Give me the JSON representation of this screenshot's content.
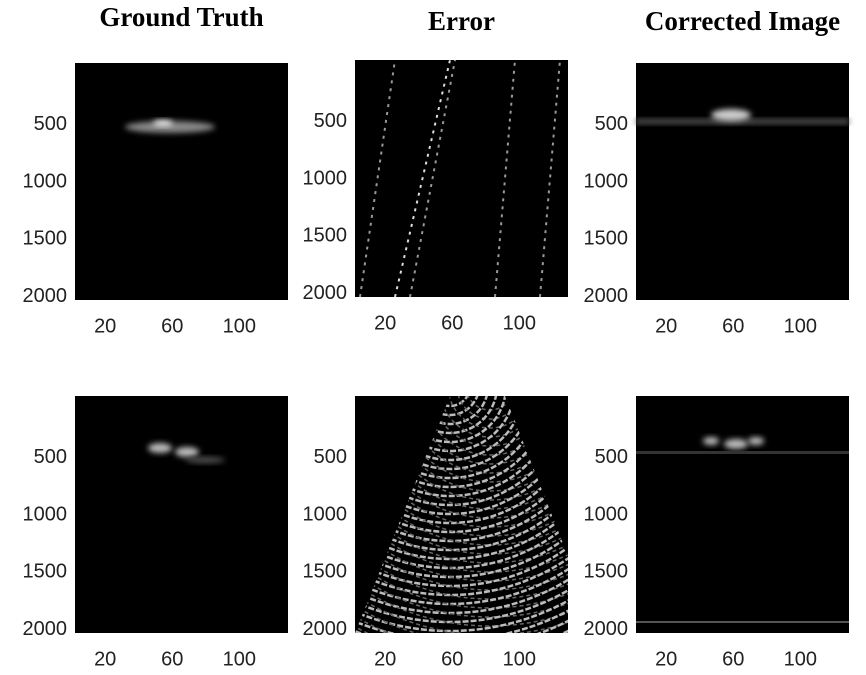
{
  "chart_data": [
    {
      "type": "image",
      "title": "Ground Truth",
      "xlim": [
        2,
        129
      ],
      "ylim": [
        -40,
        2030
      ],
      "xticks": [
        20,
        60,
        100
      ],
      "yticks": [
        500,
        1000,
        1500,
        2000
      ]
    },
    {
      "type": "image",
      "title": "Error",
      "xlim": [
        2,
        129
      ],
      "ylim": [
        -40,
        2030
      ],
      "xticks": [
        20,
        60,
        100
      ],
      "yticks": [
        500,
        1000,
        1500,
        2000
      ]
    },
    {
      "type": "image",
      "title": "Corrected Image",
      "xlim": [
        2,
        129
      ],
      "ylim": [
        -40,
        2030
      ],
      "xticks": [
        20,
        60,
        100
      ],
      "yticks": [
        500,
        1000,
        1500,
        2000
      ]
    },
    {
      "type": "image",
      "xlim": [
        2,
        129
      ],
      "ylim": [
        -40,
        2030
      ],
      "xticks": [
        20,
        60,
        100
      ],
      "yticks": [
        500,
        1000,
        1500,
        2000
      ]
    },
    {
      "type": "image",
      "xlim": [
        2,
        129
      ],
      "ylim": [
        -40,
        2030
      ],
      "xticks": [
        20,
        60,
        100
      ],
      "yticks": [
        500,
        1000,
        1500,
        2000
      ]
    },
    {
      "type": "image",
      "xlim": [
        2,
        129
      ],
      "ylim": [
        -40,
        2030
      ],
      "xticks": [
        20,
        60,
        100
      ],
      "yticks": [
        500,
        1000,
        1500,
        2000
      ]
    }
  ]
}
